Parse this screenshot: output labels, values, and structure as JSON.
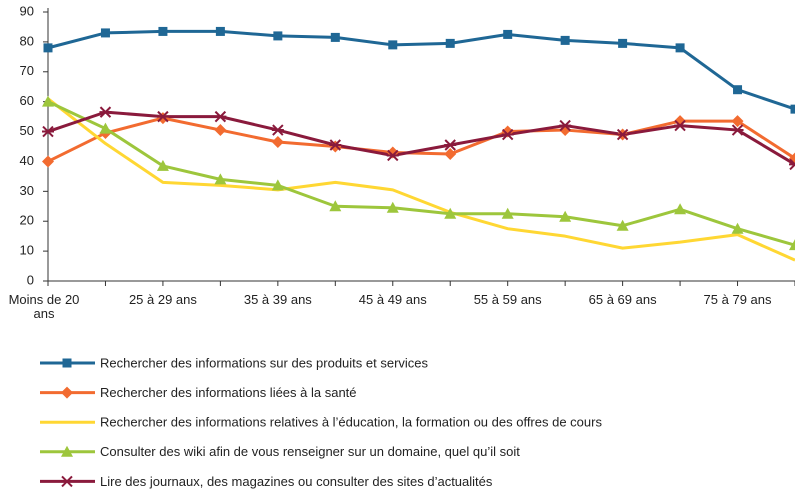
{
  "chart_data": {
    "type": "line",
    "categories": [
      "Moins de 20 ans",
      null,
      "25 à 29 ans",
      null,
      "35 à 39 ans",
      null,
      "45 à 49 ans",
      null,
      "55 à 59 ans",
      null,
      "65 à 69 ans",
      null,
      "75 à 79 ans",
      null
    ],
    "series": [
      {
        "name": "Rechercher des informations sur des produits et services",
        "color": "#1f6795",
        "marker": "square",
        "values": [
          78,
          83,
          83.5,
          83.5,
          82,
          81.5,
          79,
          79.5,
          82.5,
          80.5,
          79.5,
          78,
          64,
          57.5
        ]
      },
      {
        "name": "Rechercher des informations liées à la santé",
        "color": "#f26b30",
        "marker": "diamond",
        "values": [
          40,
          49.5,
          54.5,
          50.5,
          46.5,
          45,
          43,
          42.5,
          50,
          50.5,
          49,
          53.5,
          53.5,
          41
        ]
      },
      {
        "name": "Rechercher des informations relatives à l’éducation, la formation ou des offres de cours",
        "color": "#ffd733",
        "marker": "none",
        "values": [
          61,
          46,
          33,
          32,
          30.5,
          33,
          30.5,
          23,
          17.5,
          15,
          11,
          13,
          15.5,
          7
        ]
      },
      {
        "name": "Consulter des wiki afin de vous renseigner sur un domaine, quel qu’il soit",
        "color": "#9dc63c",
        "marker": "triangle",
        "values": [
          60,
          51,
          38.5,
          34,
          32,
          25,
          24.5,
          22.5,
          22.5,
          21.5,
          18.5,
          24,
          17.5,
          12
        ]
      },
      {
        "name": "Lire des journaux, des magazines ou consulter des sites d’actualités",
        "color": "#8a1a3c",
        "marker": "asterisk",
        "values": [
          50,
          56.5,
          55,
          55,
          50.5,
          45.5,
          42,
          45.5,
          49,
          52,
          49,
          52,
          50.5,
          39
        ]
      }
    ],
    "ylim": [
      0,
      90
    ],
    "yticks": [
      0,
      10,
      20,
      30,
      40,
      50,
      60,
      70,
      80,
      90
    ],
    "grid": false,
    "legend": "bottom"
  }
}
